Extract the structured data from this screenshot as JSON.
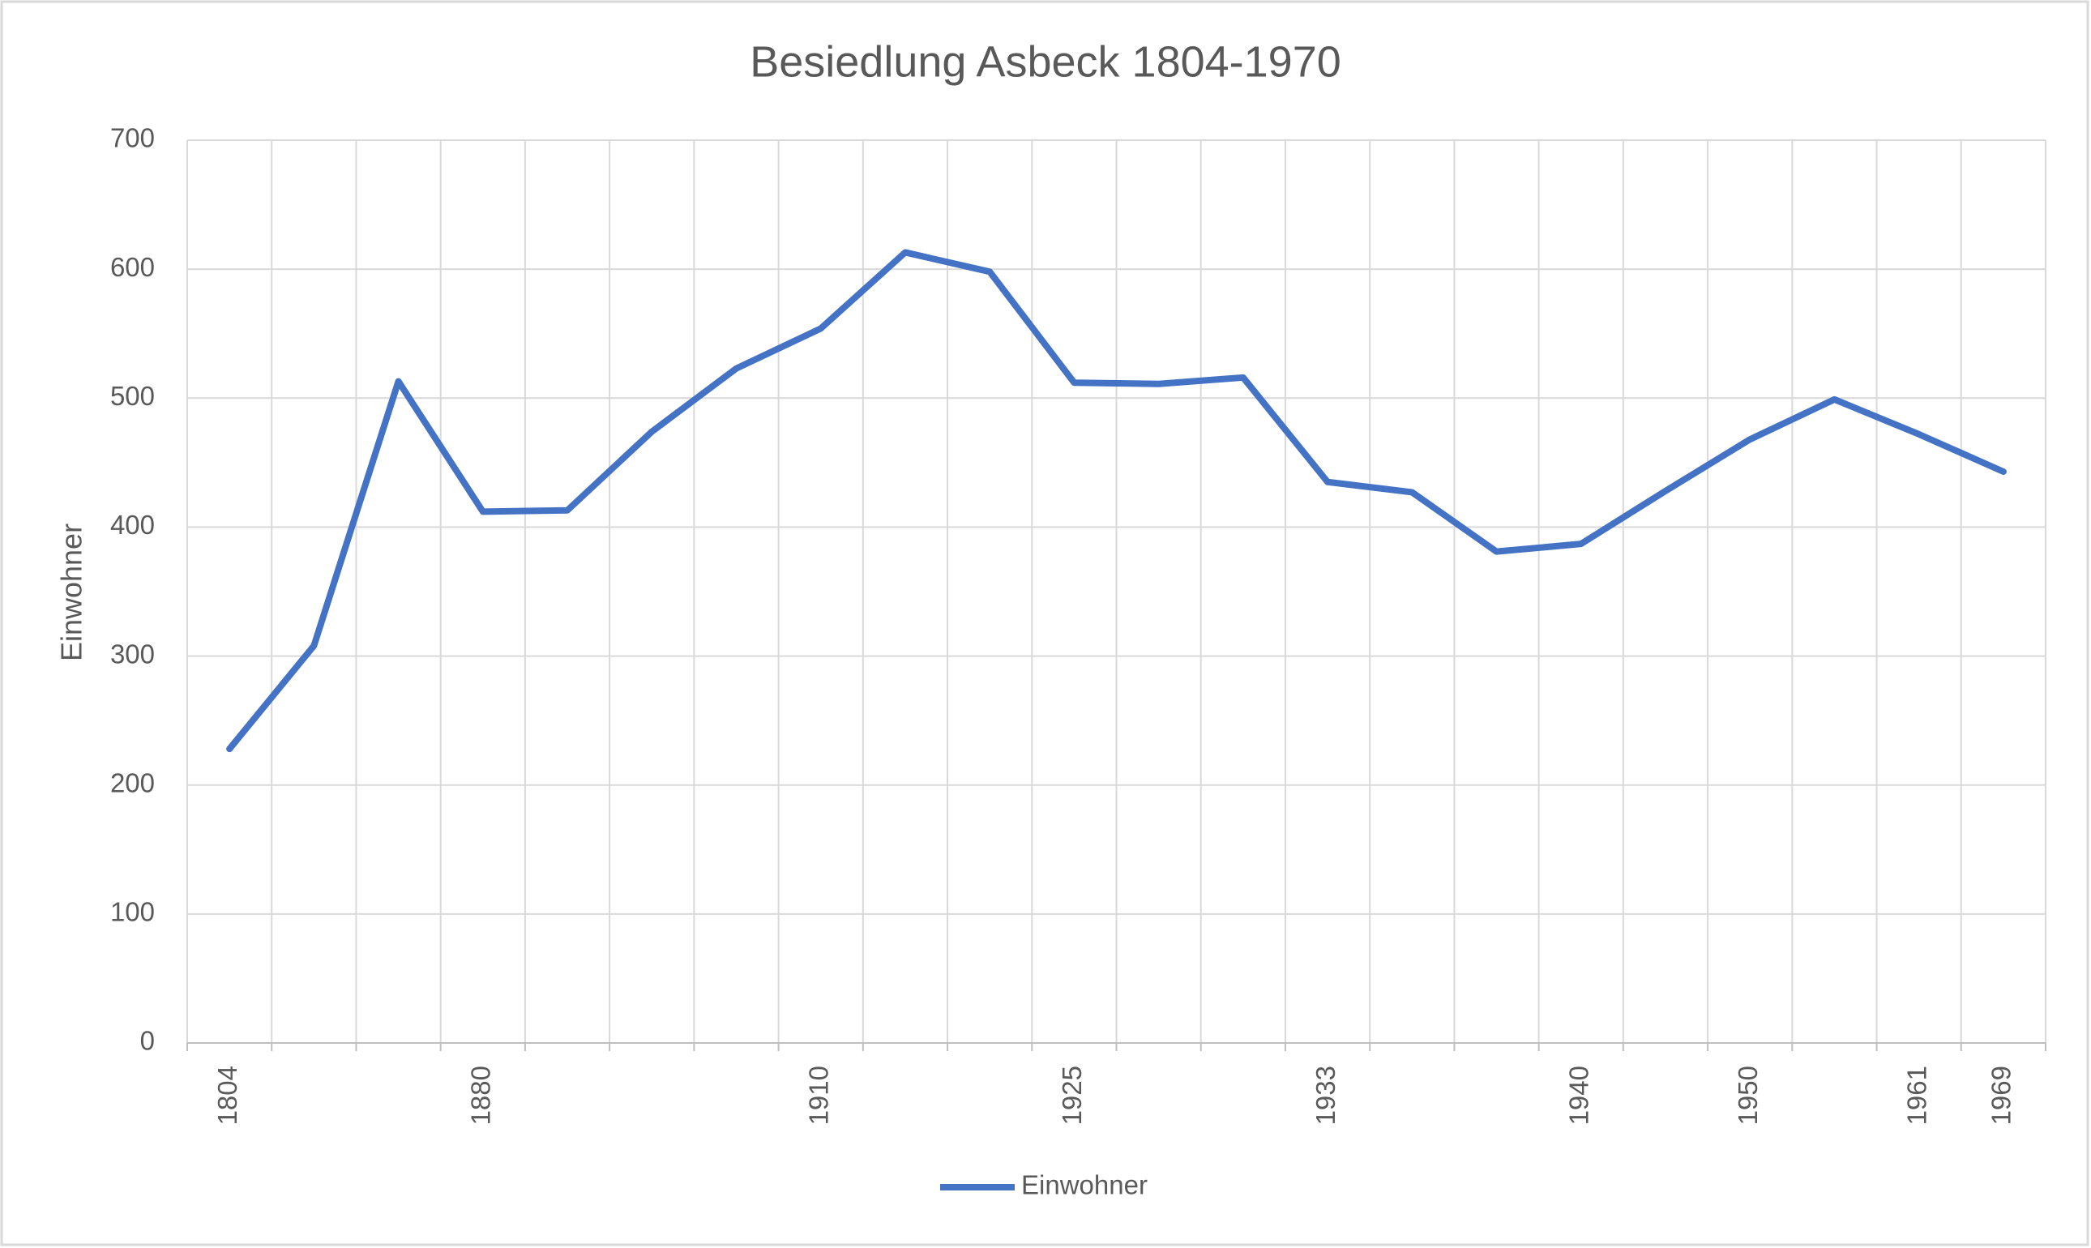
{
  "chart_data": {
    "type": "line",
    "title": "Besiedlung Asbeck 1804-1970",
    "y_label": "Einwohner",
    "categories": [
      "1804",
      null,
      null,
      "1880",
      null,
      null,
      null,
      "1910",
      null,
      null,
      "1925",
      null,
      null,
      "1933",
      null,
      null,
      "1940",
      null,
      "1950",
      null,
      "1961",
      "1969"
    ],
    "series": [
      {
        "name": "Einwohner",
        "color": "#4472c4",
        "values": [
          228,
          308,
          513,
          412,
          413,
          474,
          523,
          554,
          613,
          598,
          512,
          511,
          516,
          435,
          427,
          381,
          387,
          428,
          468,
          499,
          472,
          443
        ]
      }
    ],
    "ylim": [
      0,
      700
    ],
    "yticks": [
      0,
      100,
      200,
      300,
      400,
      500,
      600,
      700
    ],
    "grid": true,
    "legend": "bottom"
  }
}
